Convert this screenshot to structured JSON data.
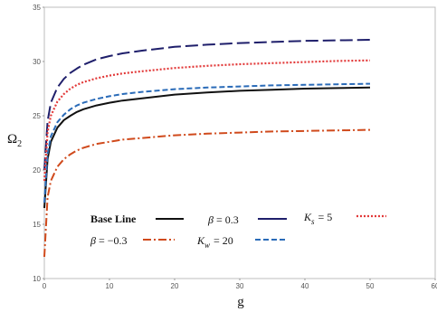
{
  "chart_data": {
    "type": "line",
    "title": "",
    "xlabel": "g",
    "ylabel": "Ω2",
    "xlim": [
      0,
      60
    ],
    "ylim": [
      10,
      35
    ],
    "x_ticks": [
      "0",
      "10",
      "20",
      "30",
      "40",
      "50",
      "60"
    ],
    "y_ticks": [
      "10",
      "15",
      "20",
      "25",
      "30",
      "35"
    ],
    "grid": false,
    "legend_position": "lower-left inside plot",
    "x": [
      0,
      0.5,
      1,
      2,
      3,
      4,
      5,
      6,
      8,
      10,
      12,
      15,
      20,
      25,
      30,
      35,
      40,
      45,
      50
    ],
    "series": [
      {
        "name": "Base Line",
        "style": "solid",
        "color": "#111111",
        "values": [
          16.5,
          21.0,
          22.6,
          23.9,
          24.6,
          25.0,
          25.35,
          25.6,
          25.95,
          26.2,
          26.4,
          26.6,
          26.95,
          27.15,
          27.3,
          27.4,
          27.5,
          27.55,
          27.6
        ]
      },
      {
        "name": "β = 0.3",
        "style": "long-dash",
        "color": "#1f1f6b",
        "values": [
          20.0,
          24.5,
          26.2,
          27.6,
          28.4,
          28.95,
          29.35,
          29.7,
          30.2,
          30.5,
          30.75,
          31.0,
          31.35,
          31.55,
          31.7,
          31.8,
          31.9,
          31.95,
          32.0
        ]
      },
      {
        "name": "β = −0.3",
        "style": "dash-dot",
        "color": "#d04a1c",
        "values": [
          12.0,
          17.5,
          19.0,
          20.3,
          21.0,
          21.45,
          21.8,
          22.05,
          22.4,
          22.6,
          22.8,
          22.95,
          23.2,
          23.35,
          23.45,
          23.55,
          23.6,
          23.65,
          23.7
        ]
      },
      {
        "name": "Kw = 20",
        "style": "dashed",
        "color": "#2a6bb8",
        "values": [
          17.0,
          21.5,
          23.1,
          24.4,
          25.1,
          25.6,
          25.95,
          26.2,
          26.55,
          26.8,
          27.0,
          27.2,
          27.45,
          27.6,
          27.7,
          27.8,
          27.85,
          27.9,
          27.95
        ]
      },
      {
        "name": "Ks = 5",
        "style": "dotted",
        "color": "#e23a3a",
        "values": [
          19.0,
          23.5,
          25.0,
          26.3,
          27.0,
          27.5,
          27.85,
          28.1,
          28.45,
          28.7,
          28.9,
          29.1,
          29.4,
          29.6,
          29.75,
          29.85,
          29.95,
          30.05,
          30.1
        ]
      }
    ],
    "legend_labels": {
      "base": "Base Line",
      "beta_pos_sym": "β",
      "beta_pos_val": "= 0.3",
      "beta_neg_sym": "β",
      "beta_neg_val": "= −0.3",
      "kw_sym": "K",
      "kw_sub": "w",
      "kw_val": "= 20",
      "ks_sym": "K",
      "ks_sub": "s",
      "ks_val": "= 5"
    }
  }
}
